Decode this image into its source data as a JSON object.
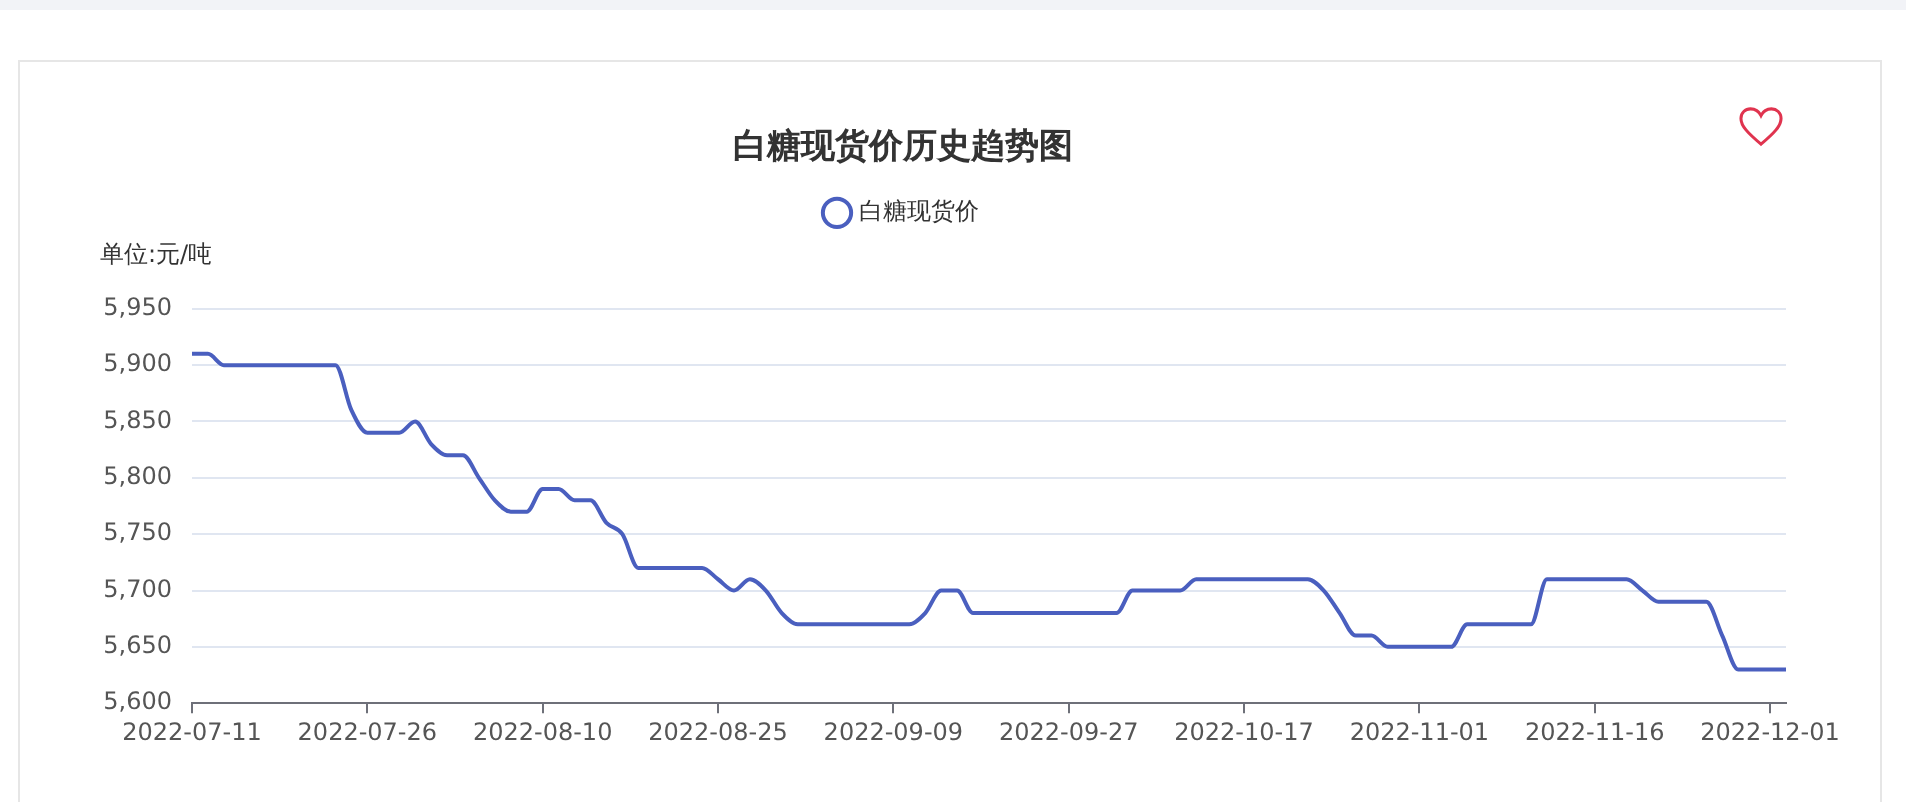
{
  "chart_data": {
    "type": "line",
    "title": "白糖现货价历史趋势图",
    "ylabel": "单位:元/吨",
    "categories": [
      "2022-07-11",
      null,
      null,
      null,
      null,
      null,
      null,
      null,
      null,
      null,
      null,
      "2022-07-26",
      null,
      null,
      null,
      null,
      null,
      null,
      null,
      null,
      null,
      null,
      "2022-08-10",
      null,
      null,
      null,
      null,
      null,
      null,
      null,
      null,
      null,
      null,
      "2022-08-25",
      null,
      null,
      null,
      null,
      null,
      null,
      null,
      null,
      null,
      null,
      "2022-09-09",
      null,
      null,
      null,
      null,
      null,
      null,
      null,
      null,
      null,
      null,
      "2022-09-27",
      null,
      null,
      null,
      null,
      null,
      null,
      null,
      null,
      null,
      null,
      "2022-10-17",
      null,
      null,
      null,
      null,
      null,
      null,
      null,
      null,
      null,
      null,
      "2022-11-01",
      null,
      null,
      null,
      null,
      null,
      null,
      null,
      null,
      null,
      null,
      "2022-11-16",
      null,
      null,
      null,
      null,
      null,
      null,
      null,
      null,
      null,
      null,
      "2022-12-01",
      null
    ],
    "series": [
      {
        "name": "白糖现货价",
        "color": "#4a5fbf",
        "values": [
          5910,
          5910,
          5900,
          5900,
          5900,
          5900,
          5900,
          5900,
          5900,
          5900,
          5860,
          5840,
          5840,
          5840,
          5850,
          5830,
          5820,
          5820,
          5800,
          5780,
          5770,
          5770,
          5790,
          5790,
          5780,
          5780,
          5760,
          5750,
          5720,
          5720,
          5720,
          5720,
          5720,
          5710,
          5700,
          5710,
          5700,
          5680,
          5670,
          5670,
          5670,
          5670,
          5670,
          5670,
          5670,
          5670,
          5680,
          5700,
          5700,
          5680,
          5680,
          5680,
          5680,
          5680,
          5680,
          5680,
          5680,
          5680,
          5680,
          5700,
          5700,
          5700,
          5700,
          5710,
          5710,
          5710,
          5710,
          5710,
          5710,
          5710,
          5710,
          5700,
          5680,
          5660,
          5660,
          5650,
          5650,
          5650,
          5650,
          5650,
          5670,
          5670,
          5670,
          5670,
          5670,
          5710,
          5710,
          5710,
          5710,
          5710,
          5710,
          5700,
          5690,
          5690,
          5690,
          5690,
          5660,
          5630,
          5630,
          5630,
          5630
        ]
      }
    ],
    "ylim": [
      5600,
      5950
    ],
    "yticks": [
      {
        "value": 5600,
        "label": "5,600"
      },
      {
        "value": 5650,
        "label": "5,650"
      },
      {
        "value": 5700,
        "label": "5,700"
      },
      {
        "value": 5750,
        "label": "5,750"
      },
      {
        "value": 5800,
        "label": "5,800"
      },
      {
        "value": 5850,
        "label": "5,850"
      },
      {
        "value": 5900,
        "label": "5,900"
      },
      {
        "value": 5950,
        "label": "5,950"
      }
    ],
    "grid": "y",
    "legend": "top",
    "marker": "none",
    "line_style": "solid"
  }
}
